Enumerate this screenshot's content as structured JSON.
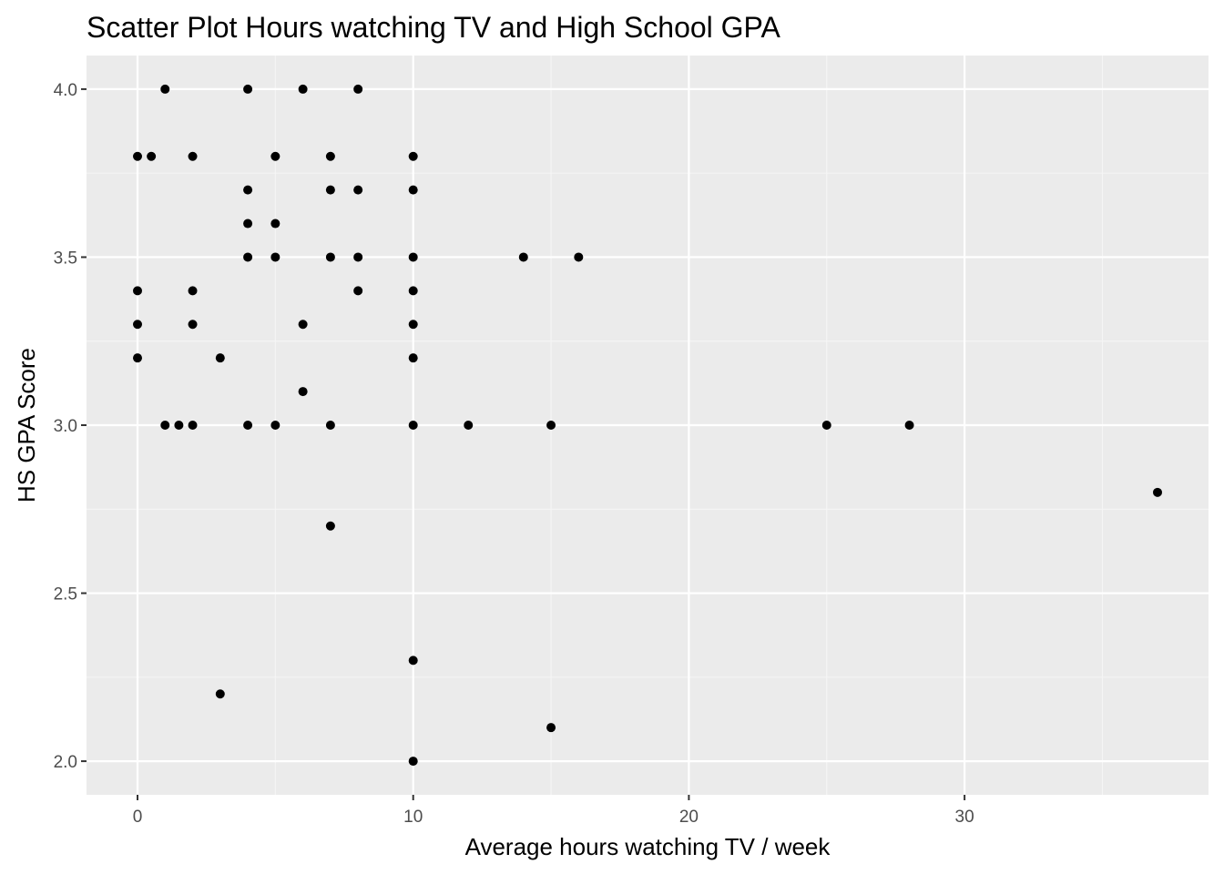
{
  "chart_data": {
    "type": "scatter",
    "title": "Scatter Plot Hours watching TV and High School GPA",
    "xlabel": "Average hours watching TV / week",
    "ylabel": "HS GPA Score",
    "xlim": [
      -1.85,
      38.85
    ],
    "ylim": [
      1.9,
      4.1
    ],
    "x_ticks": [
      0,
      10,
      20,
      30
    ],
    "x_tick_labels": [
      "0",
      "10",
      "20",
      "30"
    ],
    "x_minor_ticks": [
      5,
      15,
      25,
      35
    ],
    "y_ticks": [
      2.0,
      2.5,
      3.0,
      3.5,
      4.0
    ],
    "y_tick_labels": [
      "2.0",
      "2.5",
      "3.0",
      "3.5",
      "4.0"
    ],
    "y_minor_ticks": [
      2.25,
      2.75,
      3.25,
      3.75
    ],
    "grid": true,
    "legend": "none",
    "colors": {
      "panel_background": "#ebebeb",
      "grid_major": "#ffffff",
      "grid_minor": "#f5f5f5",
      "point": "#000000",
      "tick_label": "#4d4d4d",
      "tick_mark": "#333333"
    },
    "points": [
      {
        "x": 0,
        "y": 3.8
      },
      {
        "x": 0,
        "y": 3.4
      },
      {
        "x": 0,
        "y": 3.3
      },
      {
        "x": 0,
        "y": 3.2
      },
      {
        "x": 0.5,
        "y": 3.8
      },
      {
        "x": 1,
        "y": 4.0
      },
      {
        "x": 1,
        "y": 3.0
      },
      {
        "x": 1.5,
        "y": 3.0
      },
      {
        "x": 2,
        "y": 3.8
      },
      {
        "x": 2,
        "y": 3.4
      },
      {
        "x": 2,
        "y": 3.3
      },
      {
        "x": 2,
        "y": 3.0
      },
      {
        "x": 3,
        "y": 3.2
      },
      {
        "x": 3,
        "y": 2.2
      },
      {
        "x": 4,
        "y": 4.0
      },
      {
        "x": 4,
        "y": 3.7
      },
      {
        "x": 4,
        "y": 3.6
      },
      {
        "x": 4,
        "y": 3.5
      },
      {
        "x": 4,
        "y": 3.0
      },
      {
        "x": 5,
        "y": 3.8
      },
      {
        "x": 5,
        "y": 3.6
      },
      {
        "x": 5,
        "y": 3.5
      },
      {
        "x": 5,
        "y": 3.0
      },
      {
        "x": 6,
        "y": 4.0
      },
      {
        "x": 6,
        "y": 3.3
      },
      {
        "x": 6,
        "y": 3.1
      },
      {
        "x": 7,
        "y": 3.8
      },
      {
        "x": 7,
        "y": 3.7
      },
      {
        "x": 7,
        "y": 3.5
      },
      {
        "x": 7,
        "y": 3.0
      },
      {
        "x": 7,
        "y": 2.7
      },
      {
        "x": 8,
        "y": 4.0
      },
      {
        "x": 8,
        "y": 3.7
      },
      {
        "x": 8,
        "y": 3.5
      },
      {
        "x": 8,
        "y": 3.4
      },
      {
        "x": 10,
        "y": 3.8
      },
      {
        "x": 10,
        "y": 3.7
      },
      {
        "x": 10,
        "y": 3.5
      },
      {
        "x": 10,
        "y": 3.4
      },
      {
        "x": 10,
        "y": 3.3
      },
      {
        "x": 10,
        "y": 3.2
      },
      {
        "x": 10,
        "y": 3.0
      },
      {
        "x": 10,
        "y": 2.3
      },
      {
        "x": 10,
        "y": 2.0
      },
      {
        "x": 12,
        "y": 3.0
      },
      {
        "x": 14,
        "y": 3.5
      },
      {
        "x": 15,
        "y": 3.0
      },
      {
        "x": 15,
        "y": 2.1
      },
      {
        "x": 16,
        "y": 3.5
      },
      {
        "x": 25,
        "y": 3.0
      },
      {
        "x": 28,
        "y": 3.0
      },
      {
        "x": 37,
        "y": 2.8
      }
    ]
  }
}
